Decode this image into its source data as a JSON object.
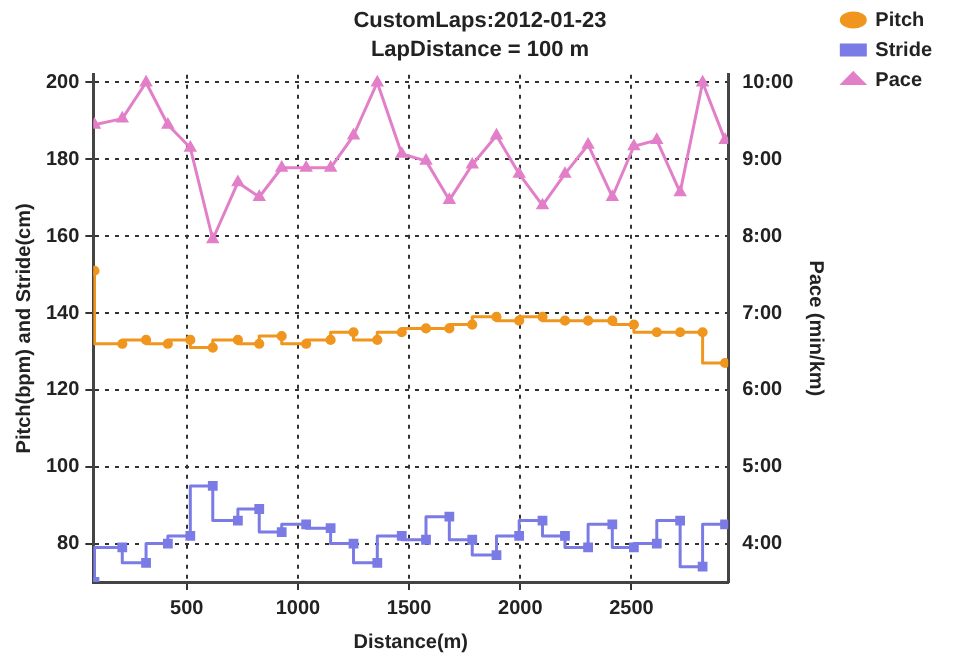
{
  "chart_data": {
    "type": "line",
    "title": "CustomLaps:2012-01-23",
    "subtitle": "LapDistance = 100 m",
    "xlabel": "Distance(m)",
    "ylabel": "Pitch(bpm) and Stride(cm)",
    "y2label": "Pace (min/km)",
    "x": [
      85,
      210,
      317,
      415,
      516,
      617,
      730,
      826,
      927,
      1037,
      1147,
      1250,
      1357,
      1467,
      1576,
      1681,
      1784,
      1893,
      1995,
      2100,
      2201,
      2305,
      2414,
      2511,
      2614,
      2719,
      2820,
      2921
    ],
    "series": [
      {
        "name": "Pitch",
        "type": "step",
        "marker": "circle",
        "color": "#f0961e",
        "values": [
          151,
          132,
          133,
          132,
          133,
          131,
          133,
          132,
          134,
          132,
          133,
          135,
          133,
          135,
          136,
          136,
          137,
          139,
          138,
          139,
          138,
          138,
          138,
          137,
          135,
          135,
          135,
          127
        ]
      },
      {
        "name": "Stride",
        "type": "step",
        "marker": "square",
        "color": "#7b7be6",
        "values": [
          70,
          79,
          75,
          80,
          82,
          95,
          86,
          89,
          83,
          85,
          84,
          80,
          75,
          82,
          81,
          87,
          81,
          77,
          82,
          86,
          82,
          79,
          85,
          79,
          80,
          86,
          74,
          85
        ]
      },
      {
        "name": "Pace",
        "type": "line",
        "marker": "triangle",
        "color": "#e27fc8",
        "axis": "y2",
        "values": [
          9.45,
          9.53,
          10,
          9.45,
          9.15,
          7.96,
          8.7,
          8.51,
          8.89,
          8.89,
          8.89,
          9.31,
          10,
          9.07,
          8.98,
          8.47,
          8.93,
          9.31,
          8.81,
          8.4,
          8.81,
          9.19,
          8.51,
          9.17,
          9.25,
          8.57,
          10,
          9.25
        ]
      }
    ],
    "xlim": [
      80,
      2935
    ],
    "xticks": [
      500,
      1000,
      1500,
      2000,
      2500
    ],
    "ylim": [
      70,
      202
    ],
    "yticks": [
      80,
      100,
      120,
      140,
      160,
      180,
      200
    ],
    "y2lim": [
      3.5,
      10.1
    ],
    "y2ticks": [
      {
        "value": 4,
        "label": "4:00"
      },
      {
        "value": 5,
        "label": "5:00"
      },
      {
        "value": 6,
        "label": "6:00"
      },
      {
        "value": 7,
        "label": "7:00"
      },
      {
        "value": 8,
        "label": "8:00"
      },
      {
        "value": 9,
        "label": "9:00"
      },
      {
        "value": 10,
        "label": "10:00"
      }
    ],
    "grid": true,
    "legend": "top right"
  }
}
